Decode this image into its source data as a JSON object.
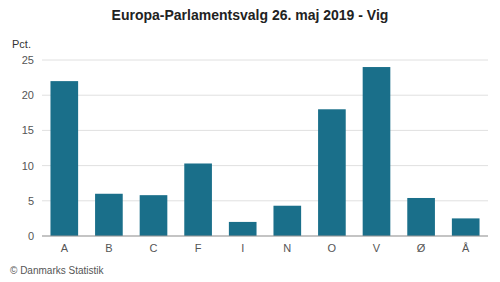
{
  "chart_data": {
    "type": "bar",
    "title": "Europa-Parlamentsvalg 26. maj 2019 - Vig",
    "ylabel": "Pct.",
    "footer": "© Danmarks Statistik",
    "categories": [
      "A",
      "B",
      "C",
      "F",
      "I",
      "N",
      "O",
      "V",
      "Ø",
      "Å"
    ],
    "values": [
      22.0,
      6.0,
      5.8,
      10.3,
      2.0,
      4.3,
      18.0,
      24.0,
      5.4,
      2.5
    ],
    "color": "#1a6f8a",
    "ylim": [
      0,
      25
    ],
    "yticks": [
      0,
      5,
      10,
      15,
      20,
      25
    ],
    "grid": true
  }
}
